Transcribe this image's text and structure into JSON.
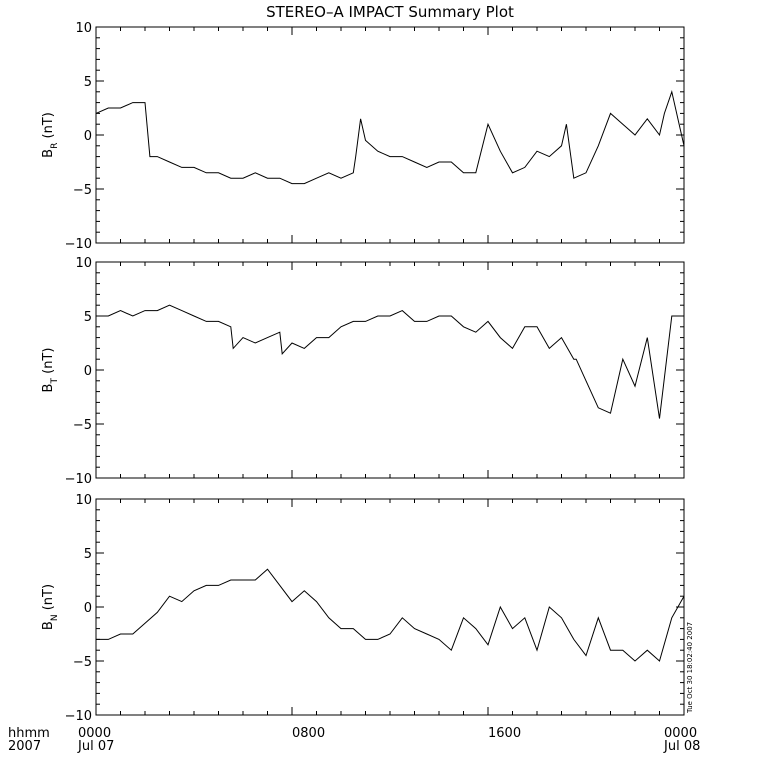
{
  "title": "STEREO–A IMPACT Summary Plot",
  "time_axis": {
    "unit_line1": "hhmm",
    "unit_line2": "2007",
    "ticks": [
      {
        "hhmm": "0000",
        "date": "Jul 07"
      },
      {
        "hhmm": "0800",
        "date": ""
      },
      {
        "hhmm": "1600",
        "date": ""
      },
      {
        "hhmm": "0000",
        "date": "Jul 08"
      }
    ]
  },
  "timestamp": "Tue Oct 30 18:02:40 2007",
  "panels": [
    {
      "ylabel_main": "B",
      "ylabel_sub": "R",
      "ylabel_unit": " (nT)",
      "yticks": [
        "10",
        "5",
        "0",
        "−5",
        "−10"
      ]
    },
    {
      "ylabel_main": "B",
      "ylabel_sub": "T",
      "ylabel_unit": " (nT)",
      "yticks": [
        "10",
        "5",
        "0",
        "−5",
        "−10"
      ]
    },
    {
      "ylabel_main": "B",
      "ylabel_sub": "N",
      "ylabel_unit": " (nT)",
      "yticks": [
        "10",
        "5",
        "0",
        "−5",
        "−10"
      ]
    }
  ],
  "chart_data": {
    "type": "line",
    "x_unit": "hours since 2007-07-07 00:00",
    "xlim": [
      0,
      24
    ],
    "ylim": [
      -10,
      10
    ],
    "series": [
      {
        "name": "B_R",
        "x": [
          0,
          0.5,
          1,
          1.5,
          2,
          2.2,
          2.5,
          3,
          3.5,
          4,
          4.5,
          5,
          5.5,
          6,
          6.5,
          7,
          7.5,
          8,
          8.5,
          9,
          9.5,
          10,
          10.5,
          10.6,
          10.8,
          11,
          11.5,
          12,
          12.5,
          13,
          13.5,
          14,
          14.5,
          15,
          15.5,
          16,
          16.5,
          17,
          17.5,
          18,
          18.5,
          19,
          19.2,
          19.5,
          20,
          20.5,
          21,
          21.5,
          22,
          22.5,
          23,
          23.2,
          23.5,
          24
        ],
        "y": [
          2,
          2.5,
          2.5,
          3,
          3,
          -2,
          -2,
          -2.5,
          -3,
          -3,
          -3.5,
          -3.5,
          -4,
          -4,
          -3.5,
          -4,
          -4,
          -4.5,
          -4.5,
          -4,
          -3.5,
          -4,
          -3.5,
          -2,
          1.5,
          -0.5,
          -1.5,
          -2,
          -2,
          -2.5,
          -3,
          -2.5,
          -2.5,
          -3.5,
          -3.5,
          1,
          -1.5,
          -3.5,
          -3,
          -1.5,
          -2,
          -1,
          1,
          -4,
          -3.5,
          -1,
          2,
          1,
          0,
          1.5,
          0,
          2,
          4,
          -1
        ]
      },
      {
        "name": "B_T",
        "x": [
          0,
          0.5,
          1,
          1.5,
          2,
          2.5,
          3,
          3.5,
          4,
          4.5,
          5,
          5.5,
          5.6,
          6,
          6.5,
          7,
          7.5,
          7.6,
          8,
          8.5,
          9,
          9.5,
          10,
          10.5,
          11,
          11.5,
          12,
          12.5,
          13,
          13.5,
          14,
          14.5,
          15,
          15.5,
          16,
          16.5,
          17,
          17.5,
          18,
          18.5,
          19,
          19.5,
          19.6,
          20,
          20.5,
          21,
          21.5,
          22,
          22.5,
          23,
          23.5,
          24
        ],
        "y": [
          5,
          5,
          5.5,
          5,
          5.5,
          5.5,
          6,
          5.5,
          5,
          4.5,
          4.5,
          4,
          2,
          3,
          2.5,
          3,
          3.5,
          1.5,
          2.5,
          2,
          3,
          3,
          4,
          4.5,
          4.5,
          5,
          5,
          5.5,
          4.5,
          4.5,
          5,
          5,
          4,
          3.5,
          4.5,
          3,
          2,
          4,
          4,
          2,
          3,
          1,
          1,
          -1,
          -3.5,
          -4,
          1,
          -1.5,
          3,
          -4.5,
          5,
          5
        ]
      },
      {
        "name": "B_N",
        "x": [
          0,
          0.5,
          1,
          1.5,
          2,
          2.5,
          3,
          3.5,
          4,
          4.5,
          5,
          5.5,
          6,
          6.5,
          7,
          7.5,
          8,
          8.5,
          9,
          9.5,
          10,
          10.5,
          11,
          11.5,
          12,
          12.5,
          13,
          13.5,
          14,
          14.5,
          15,
          15.5,
          16,
          16.5,
          17,
          17.5,
          18,
          18.5,
          19,
          19.5,
          20,
          20.5,
          21,
          21.5,
          22,
          22.5,
          23,
          23.5,
          24
        ],
        "y": [
          -3,
          -3,
          -2.5,
          -2.5,
          -1.5,
          -0.5,
          1,
          0.5,
          1.5,
          2,
          2,
          2.5,
          2.5,
          2.5,
          3.5,
          2,
          0.5,
          1.5,
          0.5,
          -1,
          -2,
          -2,
          -3,
          -3,
          -2.5,
          -1,
          -2,
          -2.5,
          -3,
          -4,
          -1,
          -2,
          -3.5,
          0,
          -2,
          -1,
          -4,
          0,
          -1,
          -3,
          -4.5,
          -1,
          -4,
          -4,
          -5,
          -4,
          -5,
          -1,
          1
        ]
      }
    ]
  }
}
